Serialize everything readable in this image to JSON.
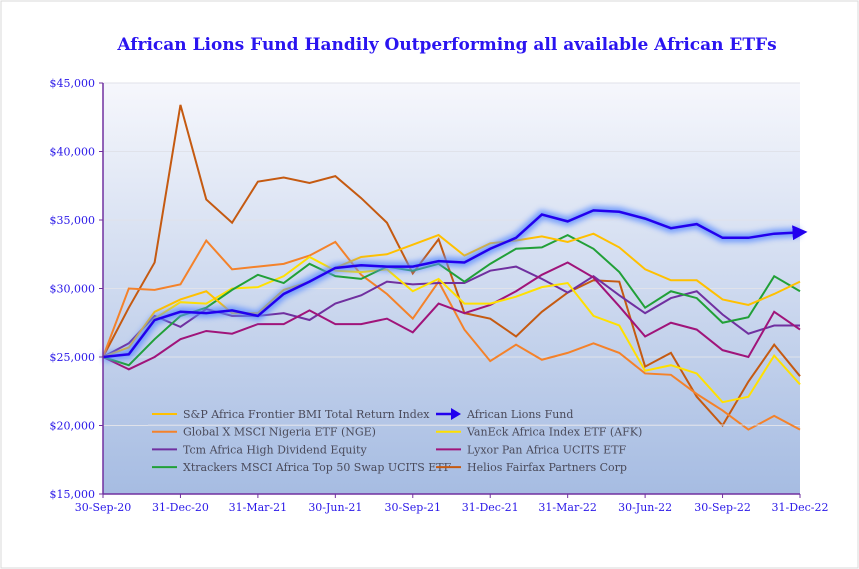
{
  "chart_data": {
    "type": "line",
    "title": "African Lions Fund Handily Outperforming all available African ETFs",
    "xlabel": "",
    "ylabel": "",
    "ylim": [
      15000,
      45000
    ],
    "yticks": [
      "$15,000",
      "$20,000",
      "$25,000",
      "$30,000",
      "$35,000",
      "$40,000",
      "$45,000"
    ],
    "xticks": [
      "30-Sep-20",
      "31-Dec-20",
      "31-Mar-21",
      "30-Jun-21",
      "30-Sep-21",
      "31-Dec-21",
      "31-Mar-22",
      "30-Jun-22",
      "30-Sep-22",
      "31-Dec-22"
    ],
    "x_range": [
      "30-Sep-20",
      "31-Dec-22"
    ],
    "frequency": "monthly",
    "grid": true,
    "legend": "bottom-left",
    "series": [
      {
        "name": "S&P Africa Frontier BMI Total Return Index",
        "color": "#FFC000",
        "values": [
          25000,
          25700,
          28300,
          29200,
          29800,
          28200,
          28200,
          29900,
          30500,
          31500,
          32300,
          32500,
          33200,
          33900,
          32400,
          33300,
          33500,
          33800,
          33400,
          34000,
          33000,
          31400,
          30600,
          30600,
          29200,
          28800,
          29600,
          30500
        ]
      },
      {
        "name": "African Lions Fund",
        "color": "#2200EE",
        "highlight": true,
        "values": [
          25000,
          25200,
          27700,
          28300,
          28200,
          28400,
          28000,
          29600,
          30500,
          31500,
          31700,
          31600,
          31600,
          32000,
          31900,
          32900,
          33700,
          35400,
          34900,
          35700,
          35600,
          35100,
          34400,
          34700,
          33700,
          33700,
          34000,
          34100
        ]
      },
      {
        "name": "Global X MSCI Nigeria ETF (NGE)",
        "color": "#F4822A",
        "values": [
          25000,
          30000,
          29900,
          30300,
          33500,
          31400,
          31600,
          31800,
          32400,
          33400,
          31000,
          29600,
          27800,
          30500,
          27000,
          24700,
          25900,
          24800,
          25300,
          26000,
          25300,
          23800,
          23700,
          22300,
          21100,
          19700,
          20700,
          19700
        ]
      },
      {
        "name": "VanEck Africa Index ETF (AFK)",
        "color": "#FFE000",
        "values": [
          25000,
          25200,
          27800,
          29000,
          28900,
          30000,
          30100,
          30900,
          32300,
          31300,
          31200,
          31400,
          29800,
          30700,
          28900,
          28900,
          29400,
          30100,
          30400,
          28000,
          27300,
          24000,
          24400,
          23800,
          21700,
          22100,
          25100,
          23000
        ]
      },
      {
        "name": "Tcm Africa High Dividend Equity",
        "color": "#7030A0",
        "values": [
          25000,
          26000,
          28000,
          27200,
          28500,
          28000,
          28000,
          28200,
          27700,
          28900,
          29500,
          30500,
          30300,
          30400,
          30400,
          31300,
          31600,
          30700,
          29700,
          30900,
          29500,
          28200,
          29300,
          29800,
          28100,
          26700,
          27300,
          27300
        ]
      },
      {
        "name": "Lyxor Pan Africa UCITS ETF",
        "color": "#A0147A",
        "values": [
          25000,
          24100,
          25000,
          26300,
          26900,
          26700,
          27400,
          27400,
          28400,
          27400,
          27400,
          27800,
          26800,
          28900,
          28200,
          28800,
          29800,
          31000,
          31900,
          30800,
          28700,
          26500,
          27500,
          27000,
          25500,
          25000,
          28300,
          27000
        ]
      },
      {
        "name": "Xtrackers MSCI Africa Top 50 Swap UCITS ETF",
        "color": "#21A038",
        "values": [
          25000,
          24400,
          26300,
          28000,
          28600,
          29900,
          31000,
          30400,
          31800,
          30900,
          30700,
          31600,
          31300,
          31800,
          30500,
          31800,
          32900,
          33000,
          33900,
          32900,
          31200,
          28600,
          29800,
          29300,
          27500,
          27900,
          30900,
          29800
        ]
      },
      {
        "name": "Helios Fairfax Partners Corp",
        "color": "#C55A11",
        "values": [
          25000,
          28600,
          31900,
          43400,
          36500,
          34800,
          37800,
          38100,
          37700,
          38200,
          36600,
          34800,
          31100,
          33600,
          28200,
          27800,
          26500,
          28300,
          29700,
          30600,
          30500,
          24300,
          25300,
          22100,
          20000,
          23200,
          25900,
          23600
        ]
      }
    ]
  }
}
